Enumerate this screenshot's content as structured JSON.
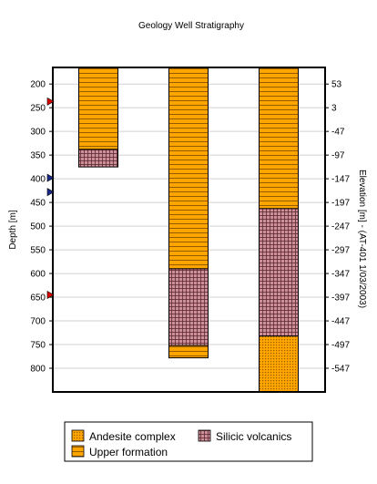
{
  "chart_data": {
    "type": "bar",
    "title": "Geology Well Stratigraphy",
    "ylabel": "Depth [m]",
    "ylabel_right": "Elevation [m] - (AT-401 1/03/2003)",
    "ylim": [
      165,
      850
    ],
    "y_inverted": true,
    "grid": true,
    "legend_position": "bottom",
    "left_ticks": [
      200,
      250,
      300,
      350,
      400,
      450,
      500,
      550,
      600,
      650,
      700,
      750,
      800
    ],
    "right_ticks": [
      53,
      3,
      -47,
      -97,
      -147,
      -197,
      -247,
      -297,
      -347,
      -397,
      -447,
      -497,
      -547
    ],
    "wells": [
      {
        "layers": [
          {
            "unit": "Upper formation",
            "top": 165,
            "bottom": 338
          },
          {
            "unit": "Silicic volcanics",
            "top": 338,
            "bottom": 375
          }
        ]
      },
      {
        "layers": [
          {
            "unit": "Upper formation",
            "top": 165,
            "bottom": 590
          },
          {
            "unit": "Silicic volcanics",
            "top": 590,
            "bottom": 752
          },
          {
            "unit": "Upper formation",
            "top": 752,
            "bottom": 778
          }
        ]
      },
      {
        "layers": [
          {
            "unit": "Upper formation",
            "top": 165,
            "bottom": 463
          },
          {
            "unit": "Silicic volcanics",
            "top": 463,
            "bottom": 732
          },
          {
            "unit": "Andesite complex",
            "top": 732,
            "bottom": 850
          }
        ]
      }
    ],
    "markers": [
      {
        "depth": 237,
        "color": "#dd0000"
      },
      {
        "depth": 398,
        "color": "#1a2a8a"
      },
      {
        "depth": 428,
        "color": "#1a2a8a"
      },
      {
        "depth": 645,
        "color": "#dd0000"
      }
    ],
    "legend": [
      {
        "label": "Andesite complex",
        "unit": "Andesite complex"
      },
      {
        "label": "Silicic volcanics",
        "unit": "Silicic volcanics"
      },
      {
        "label": "Upper formation",
        "unit": "Upper formation"
      }
    ],
    "unit_colors": {
      "Andesite complex": "#ffa500",
      "Silicic volcanics": "#cc8f9a",
      "Upper formation": "#ffa500"
    }
  }
}
